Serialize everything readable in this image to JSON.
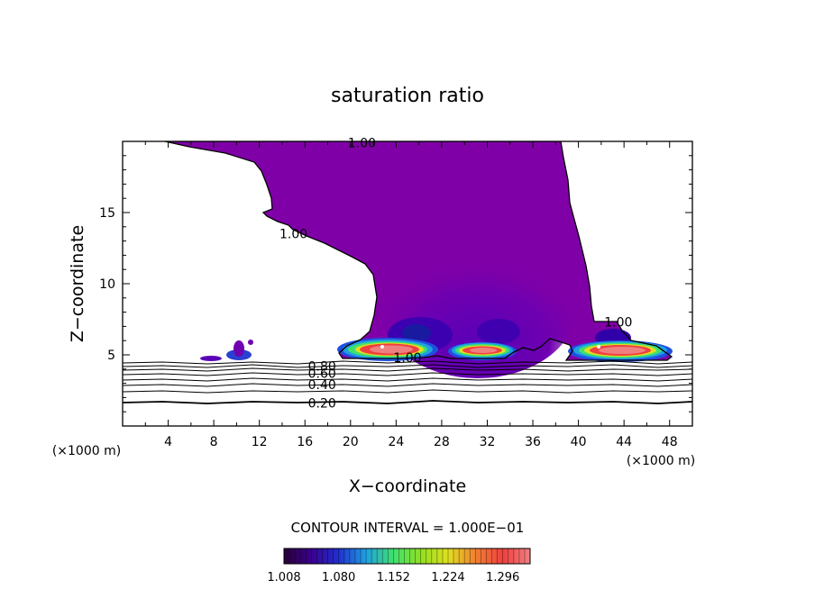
{
  "chart_data": {
    "type": "contour",
    "title": "saturation ratio",
    "xlabel": "X−coordinate",
    "ylabel": "Z−coordinate",
    "x_unit_label": "(×1000 m)",
    "xlim": [
      0,
      50
    ],
    "ylim": [
      0,
      20
    ],
    "x_ticks": [
      4,
      8,
      12,
      16,
      20,
      24,
      28,
      32,
      36,
      40,
      44,
      48
    ],
    "x_tick_labels": [
      "4",
      "8",
      "12",
      "16",
      "20",
      "24",
      "28",
      "32",
      "36",
      "40",
      "44",
      "48"
    ],
    "y_ticks": [
      5,
      10,
      15
    ],
    "y_tick_labels": [
      "5",
      "10",
      "15"
    ],
    "contour_labels": [
      {
        "text": "1.00",
        "x": 21,
        "y": 19.9
      },
      {
        "text": "1.00",
        "x": 15,
        "y": 13.5
      },
      {
        "text": "1.00",
        "x": 43.5,
        "y": 7.3
      },
      {
        "text": "1.00",
        "x": 25,
        "y": 4.8
      },
      {
        "text": "0.80",
        "x": 17.5,
        "y": 4.2
      },
      {
        "text": "0.60",
        "x": 17.5,
        "y": 3.7
      },
      {
        "text": "0.40",
        "x": 17.5,
        "y": 2.9
      },
      {
        "text": "0.20",
        "x": 17.5,
        "y": 1.6
      }
    ],
    "contour_interval_label": "CONTOUR INTERVAL = 1.000E−01",
    "colorbar": {
      "min": 1.008,
      "max": 1.332,
      "tick_labels": [
        "1.008",
        "1.080",
        "1.152",
        "1.224",
        "1.296"
      ],
      "colors": [
        "#2a0038",
        "#3a0090",
        "#2030d0",
        "#20a0e0",
        "#40e070",
        "#90e020",
        "#e0e020",
        "#f08030",
        "#f04040",
        "#f08080"
      ]
    },
    "supersaturated_region_color": "#8000a8",
    "subsaturated_isolines": [
      0.2,
      0.3,
      0.4,
      0.5,
      0.6,
      0.7,
      0.8,
      0.9
    ],
    "grid": false,
    "legend": "colorbar-bottom"
  }
}
